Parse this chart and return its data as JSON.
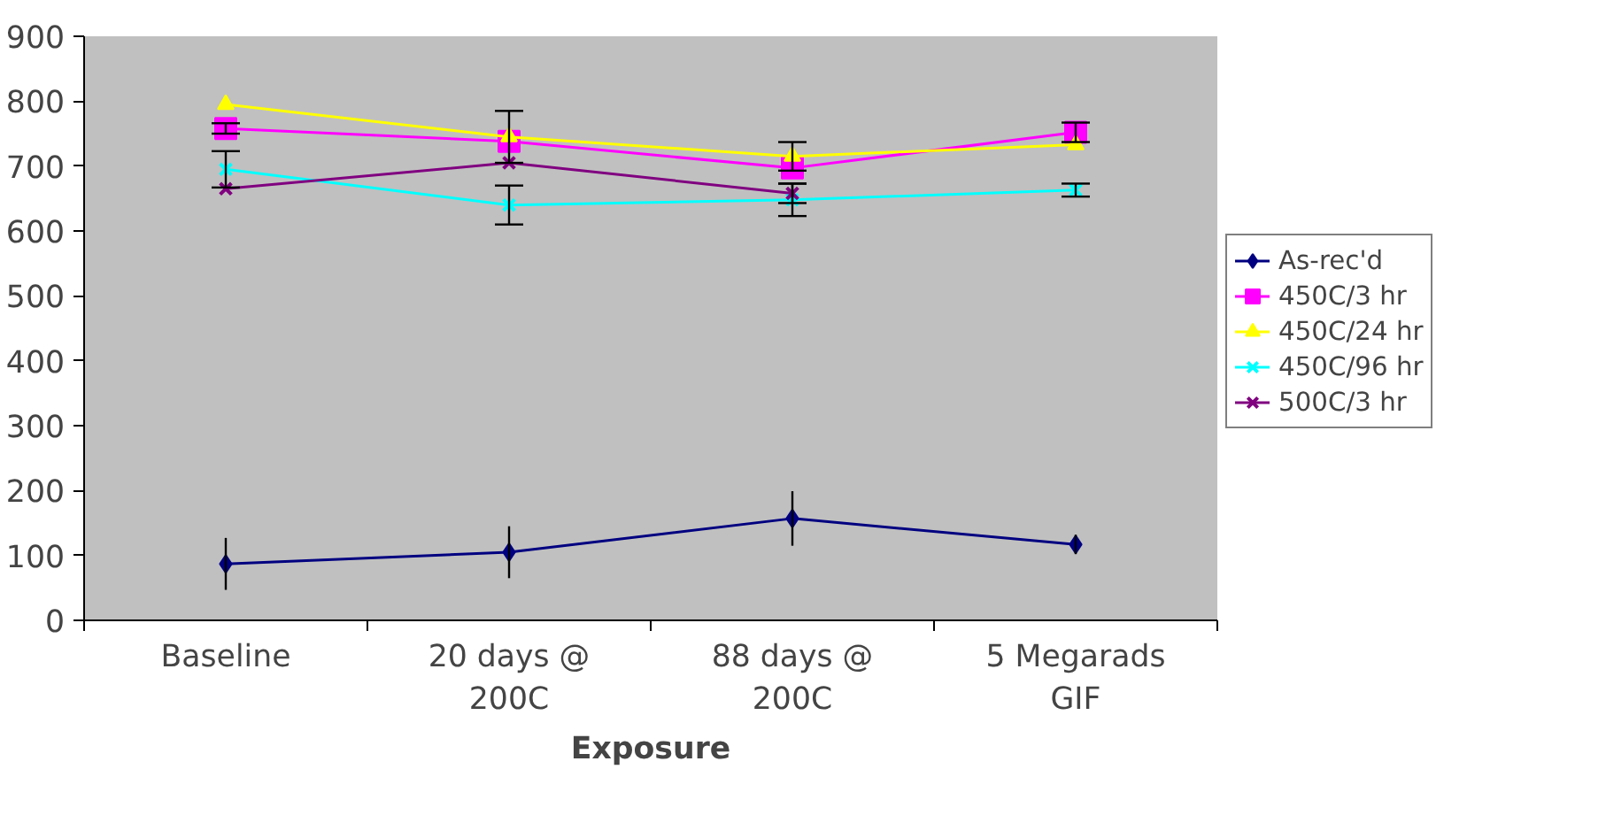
{
  "chart_data": {
    "type": "line",
    "xlabel": "Exposure",
    "categories": [
      "Baseline",
      "20 days @ 200C",
      "88 days @ 200C",
      "5 Megarads GIF"
    ],
    "ylim": [
      0,
      900
    ],
    "yticks": [
      0,
      100,
      200,
      300,
      400,
      500,
      600,
      700,
      800,
      900
    ],
    "grid": false,
    "legend": "right",
    "series": [
      {
        "name": "As-rec'd",
        "color": "#000080",
        "marker": "diamond",
        "values": [
          87,
          105,
          157,
          117
        ],
        "errors": [
          40,
          40,
          42,
          15
        ]
      },
      {
        "name": "450C/3 hr",
        "color": "#ff00ff",
        "marker": "square",
        "values": [
          758,
          738,
          697,
          752
        ],
        "errors": [
          8,
          null,
          null,
          15
        ]
      },
      {
        "name": "450C/24 hr",
        "color": "#ffff00",
        "marker": "triangle",
        "values": [
          795,
          745,
          715,
          733
        ],
        "errors": [
          null,
          40,
          22,
          null
        ]
      },
      {
        "name": "450C/96 hr",
        "color": "#00ffff",
        "marker": "cross",
        "values": [
          695,
          640,
          648,
          663
        ],
        "errors": [
          28,
          30,
          25,
          10
        ]
      },
      {
        "name": "500C/3 hr",
        "color": "#800080",
        "marker": "cross",
        "values": [
          665,
          705,
          658,
          null
        ],
        "errors": [
          null,
          null,
          15,
          null
        ]
      }
    ]
  }
}
